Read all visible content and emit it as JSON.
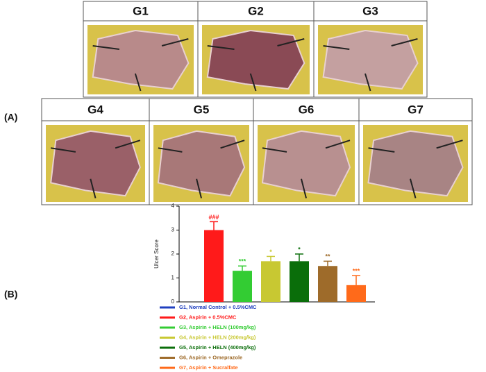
{
  "panel_a": {
    "label": "(A)",
    "groups": [
      "G1",
      "G2",
      "G3",
      "G4",
      "G5",
      "G6",
      "G7"
    ]
  },
  "panel_b": {
    "label": "(B)"
  },
  "chart_data": {
    "type": "bar",
    "y_label": "Ulcer Score",
    "ylim": [
      0,
      4
    ],
    "yticks": [
      0,
      1,
      2,
      3,
      4
    ],
    "series": [
      {
        "name": "G1, Normal Control + 0.5%CMC",
        "color": "#1f3fbf",
        "values": [
          0
        ]
      },
      {
        "name": "G2, Aspirin + 0.5%CMC",
        "color": "#ff1a1a",
        "values": [
          3.0
        ],
        "error": [
          0.35
        ],
        "significance": "###"
      },
      {
        "name": "G3, Aspirin + HELN (100mg/kg)",
        "color": "#33cc33",
        "values": [
          1.3
        ],
        "error": [
          0.2
        ],
        "significance": "***"
      },
      {
        "name": "G4, Aspirin + HELN (200mg/kg)",
        "color": "#c8c832",
        "values": [
          1.7
        ],
        "error": [
          0.2
        ],
        "significance": "*"
      },
      {
        "name": "G5, Aspirin + HELN (400mg/kg)",
        "color": "#0a6e0a",
        "values": [
          1.7
        ],
        "error": [
          0.3
        ],
        "significance": "*"
      },
      {
        "name": "G6, Aspirin + Omeprazole",
        "color": "#9e6b2a",
        "values": [
          1.5
        ],
        "error": [
          0.2
        ],
        "significance": "**"
      },
      {
        "name": "G7, Aspirin + Sucralfate",
        "color": "#ff6a1a",
        "values": [
          0.7
        ],
        "error": [
          0.4
        ],
        "significance": "***"
      }
    ]
  }
}
